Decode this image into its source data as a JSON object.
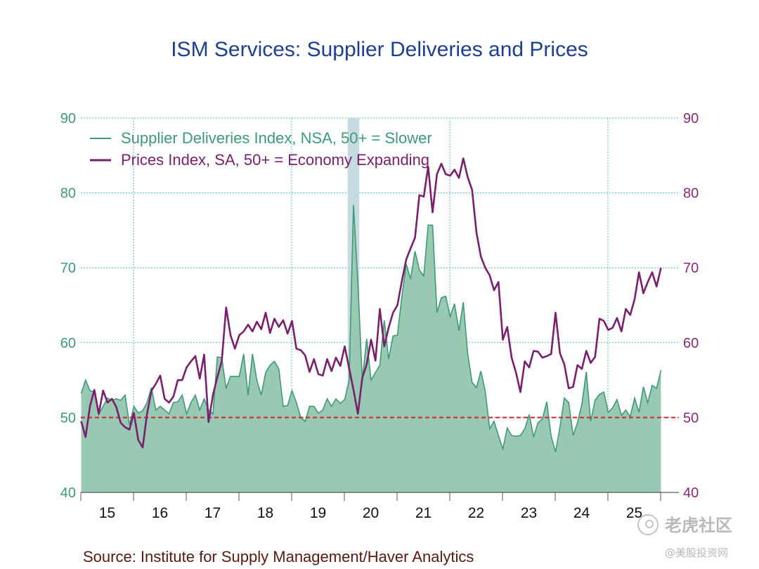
{
  "chart_data": {
    "type": "area",
    "title": "ISM Services: Supplier Deliveries and Prices",
    "source": "Source:  Institute for Supply Management/Haver Analytics",
    "ylim": [
      40,
      90
    ],
    "yticks": [
      "40",
      "50",
      "60",
      "70",
      "80",
      "90"
    ],
    "x_tick_labels": [
      "15",
      "16",
      "17",
      "18",
      "19",
      "20",
      "21",
      "22",
      "23",
      "24",
      "25"
    ],
    "x_start": "2015-01",
    "grid": true,
    "legend_position": "top-left",
    "reference_line": {
      "value": 50,
      "style": "dashed",
      "color": "#d0242a"
    },
    "recession_shading": {
      "from": "2020-02",
      "to": "2020-04"
    },
    "series": [
      {
        "name": "Supplier Deliveries Index, NSA, 50+ = Slower",
        "kind": "area",
        "color": "#3f9a78",
        "fill": "#99c9b2",
        "values": [
          53.2,
          55.0,
          53.6,
          53.4,
          50.4,
          51.5,
          52.6,
          52.3,
          52.5,
          52.3,
          53.0,
          49.0,
          51.5,
          50.6,
          50.9,
          52.0,
          54.0,
          51.0,
          51.5,
          51.0,
          50.5,
          52.0,
          52.1,
          53.0,
          50.5,
          52.0,
          53.0,
          51.0,
          52.5,
          51.0,
          50.5,
          58.1,
          58.0,
          53.9,
          55.5,
          55.5,
          55.5,
          58.5,
          53.0,
          58.5,
          55.0,
          53.0,
          56.0,
          57.0,
          57.5,
          56.5,
          51.5,
          51.6,
          53.6,
          52.0,
          50.0,
          49.5,
          51.5,
          51.5,
          50.6,
          51.0,
          52.5,
          51.5,
          52.5,
          51.9,
          52.4,
          55.0,
          78.4,
          68.0,
          55.0,
          60.5,
          55.0,
          56.0,
          57.0,
          63.0,
          57.8,
          60.9,
          61.0,
          66.1,
          70.5,
          68.5,
          72.2,
          69.7,
          68.9,
          75.7,
          75.7,
          64.0,
          66.0,
          66.2,
          63.5,
          65.2,
          61.6,
          65.4,
          58.5,
          54.7,
          54.0,
          56.2,
          53.5,
          48.5,
          49.5,
          47.6,
          45.8,
          48.6,
          47.6,
          47.5,
          47.6,
          48.5,
          50.4,
          47.4,
          49.3,
          49.8,
          52.1,
          47.5,
          45.4,
          48.7,
          52.6,
          52.0,
          47.6,
          49.3,
          51.8,
          56.1,
          49.5,
          52.3,
          53.1,
          53.4,
          50.7,
          51.3,
          52.4,
          50.3,
          51.0,
          50.1,
          52.6,
          50.7,
          54.1,
          52.0,
          54.3,
          53.9,
          56.3
        ]
      },
      {
        "name": "Prices Index, SA, 50+ = Economy Expanding",
        "kind": "line",
        "color": "#7a1f6e",
        "values": [
          49.5,
          47.4,
          51.5,
          53.7,
          50.5,
          53.6,
          52.0,
          52.5,
          51.4,
          49.3,
          48.7,
          48.4,
          50.6,
          47.0,
          46.0,
          50.5,
          53.6,
          54.5,
          55.6,
          52.5,
          52.0,
          52.8,
          55.0,
          55.0,
          56.7,
          57.5,
          58.2,
          55.2,
          58.4,
          49.4,
          53.0,
          55.4,
          57.5,
          64.7,
          61.0,
          59.2,
          61.0,
          61.5,
          62.4,
          61.5,
          62.8,
          61.8,
          64.0,
          61.3,
          63.2,
          62.1,
          63.0,
          61.2,
          62.9,
          59.2,
          59.0,
          58.3,
          56.1,
          57.8,
          55.8,
          55.6,
          57.8,
          56.2,
          58.0,
          56.9,
          59.5,
          56.6,
          53.7,
          50.5,
          55.3,
          57.1,
          60.4,
          57.6,
          64.5,
          59.5,
          62.0,
          64.0,
          65.0,
          68.2,
          71.1,
          72.6,
          74.0,
          79.7,
          79.5,
          83.5,
          77.4,
          82.5,
          83.9,
          82.5,
          82.3,
          83.1,
          82.0,
          84.6,
          82.1,
          80.4,
          74.7,
          71.5,
          70.0,
          69.0,
          67.0,
          68.1,
          60.4,
          62.1,
          58.0,
          56.0,
          53.4,
          57.5,
          56.7,
          58.9,
          58.8,
          58.0,
          58.2,
          58.5,
          64.0,
          58.6,
          57.1,
          53.9,
          54.1,
          57.0,
          56.5,
          58.9,
          57.3,
          58.1,
          63.2,
          62.9,
          61.7,
          62.0,
          63.3,
          61.5,
          64.5,
          63.7,
          65.8,
          69.4,
          66.6,
          68.1,
          69.4,
          67.5,
          70.0
        ]
      }
    ]
  },
  "watermark": {
    "main": "老虎社区",
    "sub": "@美股投资网"
  }
}
